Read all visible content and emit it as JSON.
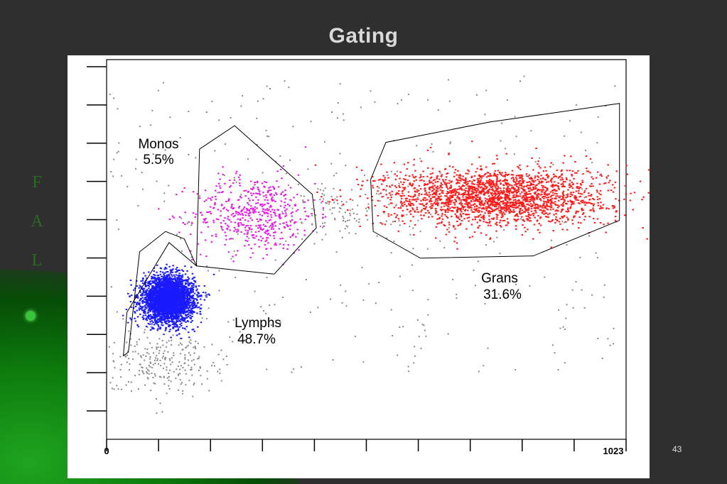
{
  "slide": {
    "title": "Gating",
    "side_letters": [
      "F",
      "A",
      "L"
    ],
    "page_number": "43"
  },
  "chart_data": {
    "type": "scatter",
    "title": "Gating",
    "xlabel": "",
    "ylabel": "FAL",
    "xlim": [
      0,
      1023
    ],
    "ylim": [
      0,
      1023
    ],
    "x_tick_labels": [
      "0",
      "1023"
    ],
    "x_tick_count": 11,
    "y_tick_count": 10,
    "grid": false,
    "gates": [
      {
        "name": "Monos",
        "label": "Monos",
        "percent": "5.5%",
        "color": "#e619e6",
        "center": [
          290,
          610
        ],
        "spread": [
          110,
          95
        ],
        "points": 520,
        "polygon": [
          [
            183,
            782
          ],
          [
            252,
            845
          ],
          [
            405,
            660
          ],
          [
            413,
            570
          ],
          [
            330,
            445
          ],
          [
            177,
            467
          ],
          [
            183,
            782
          ]
        ]
      },
      {
        "name": "Lymphs",
        "label": "Lymphs",
        "percent": "48.7%",
        "color": "#1a1aff",
        "center": [
          120,
          380
        ],
        "spread": [
          45,
          55
        ],
        "points": 3300,
        "polygon": [
          [
            177,
            467
          ],
          [
            153,
            540
          ],
          [
            116,
            560
          ],
          [
            65,
            505
          ],
          [
            43,
            235
          ],
          [
            33,
            225
          ],
          [
            40,
            342
          ],
          [
            123,
            530
          ],
          [
            177,
            467
          ]
        ]
      },
      {
        "name": "Grans",
        "label": "Grans",
        "percent": "31.6%",
        "color": "#ff1a1a",
        "center": [
          765,
          655
        ],
        "spread": [
          200,
          72
        ],
        "points": 2200,
        "polygon": [
          [
            520,
            700
          ],
          [
            550,
            800
          ],
          [
            755,
            855
          ],
          [
            1010,
            905
          ],
          [
            1010,
            590
          ],
          [
            840,
            494
          ],
          [
            618,
            488
          ],
          [
            525,
            560
          ],
          [
            520,
            700
          ]
        ]
      }
    ],
    "background_points": 700,
    "background_color": "#888888"
  }
}
